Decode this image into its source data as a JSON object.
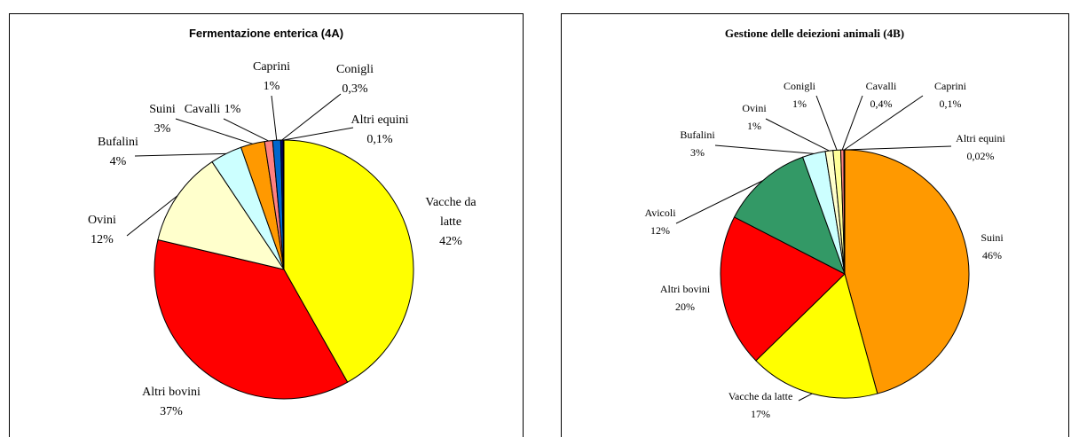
{
  "chart_data": [
    {
      "type": "pie",
      "title": "Fermentazione enterica (4A)",
      "categories": [
        "Vacche da latte",
        "Altri bovini",
        "Ovini",
        "Bufalini",
        "Suini",
        "Cavalli",
        "Caprini",
        "Conigli",
        "Altri equini"
      ],
      "values": [
        42,
        37,
        12,
        4,
        3,
        1,
        1,
        0.3,
        0.1
      ],
      "value_labels": [
        "42%",
        "37%",
        "12%",
        "4%",
        "3%",
        "1%",
        "1%",
        "0,3%",
        "0,1%"
      ],
      "colors": [
        "#ffff00",
        "#ff0000",
        "#ffffcc",
        "#ccffff",
        "#ff9900",
        "#ff8080",
        "#0066cc",
        "#000080",
        "#333399"
      ]
    },
    {
      "type": "pie",
      "title": "Gestione delle deiezioni animali (4B)",
      "categories": [
        "Suini",
        "Vacche da latte",
        "Altri bovini",
        "Avicoli",
        "Bufalini",
        "Ovini",
        "Conigli",
        "Cavalli",
        "Caprini",
        "Altri equini"
      ],
      "values": [
        46,
        17,
        20,
        12,
        3,
        1,
        1,
        0.4,
        0.1,
        0.02
      ],
      "value_labels": [
        "46%",
        "17%",
        "20%",
        "12%",
        "3%",
        "1%",
        "1%",
        "0,4%",
        "0,1%",
        "0,02%"
      ],
      "colors": [
        "#ff9900",
        "#ffff00",
        "#ff0000",
        "#339966",
        "#ccffff",
        "#ffffcc",
        "#ffff99",
        "#ff8080",
        "#0066cc",
        "#333399"
      ]
    }
  ]
}
